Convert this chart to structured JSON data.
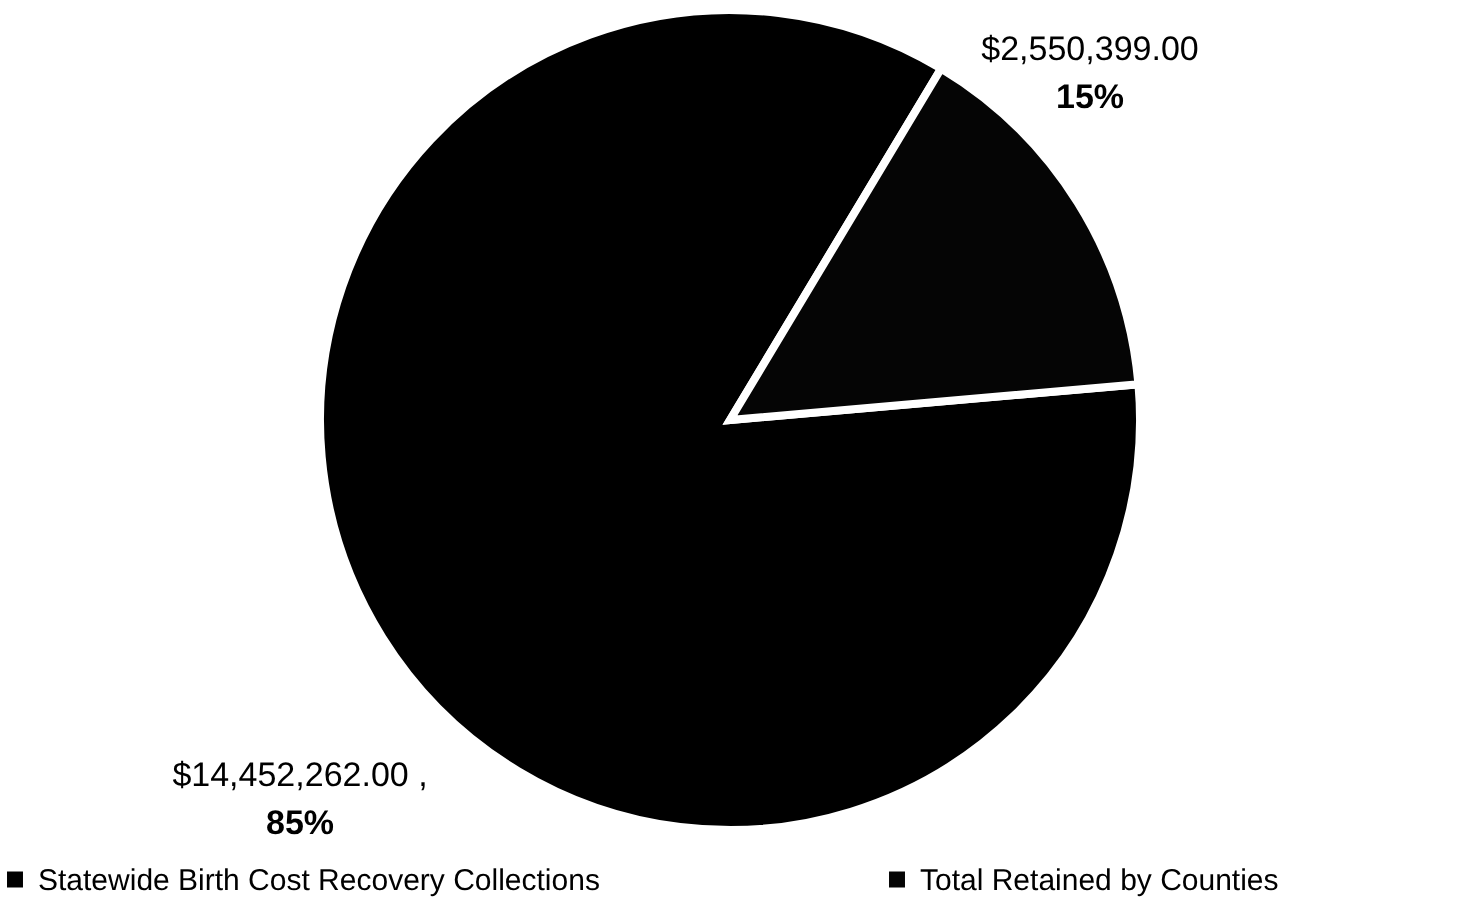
{
  "chart_data": {
    "type": "pie",
    "categories": [
      "Statewide Birth Cost Recovery Collections",
      "Total Retained by Counties"
    ],
    "values": [
      14452262,
      2550399
    ],
    "colors": [
      "#000000",
      "#050505"
    ],
    "value_labels": [
      "$14,452,262.00 ,\n85%",
      "$2,550,399.00\n15%"
    ],
    "legend": "bottom"
  }
}
